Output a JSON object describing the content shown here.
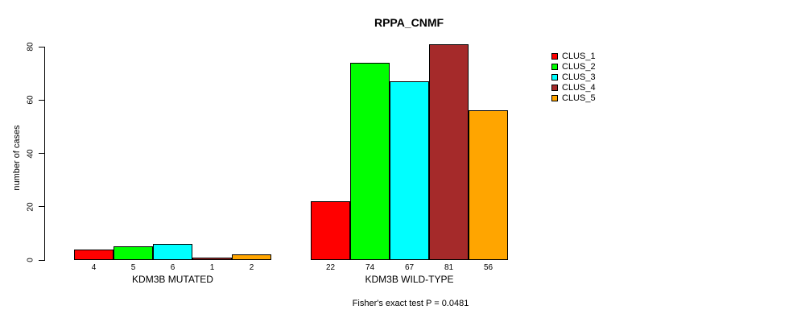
{
  "title": "RPPA_CNMF",
  "ylabel": "number of cases",
  "footnote": "Fisher's exact test P = 0.0481",
  "chart_data": {
    "type": "bar",
    "title": "RPPA_CNMF",
    "ylabel": "number of cases",
    "xlabel": "",
    "annotation": "Fisher's exact test P = 0.0481",
    "categories": [
      "KDM3B MUTATED",
      "KDM3B WILD-TYPE"
    ],
    "series": [
      {
        "name": "CLUS_1",
        "color": "#FF0000",
        "values": [
          4,
          22
        ]
      },
      {
        "name": "CLUS_2",
        "color": "#00FF00",
        "values": [
          5,
          74
        ]
      },
      {
        "name": "CLUS_3",
        "color": "#00FFFF",
        "values": [
          6,
          67
        ]
      },
      {
        "name": "CLUS_4",
        "color": "#A52A2A",
        "values": [
          1,
          81
        ]
      },
      {
        "name": "CLUS_5",
        "color": "#FFA500",
        "values": [
          2,
          56
        ]
      }
    ],
    "bar_value_labels": true,
    "yticks": [
      0,
      20,
      40,
      60,
      80
    ],
    "ylim": [
      0,
      85
    ],
    "grid": false,
    "legend_position": "right",
    "background": "#ffffff",
    "axis_color": "#000000"
  }
}
